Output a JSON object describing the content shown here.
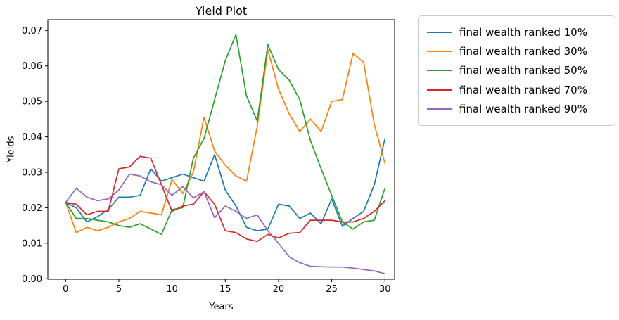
{
  "chart_data": {
    "type": "line",
    "title": "Yield Plot",
    "xlabel": "Years",
    "ylabel": "Yields",
    "x_ticks": [
      "0",
      "5",
      "10",
      "15",
      "20",
      "25",
      "30"
    ],
    "x_tick_values": [
      0,
      5,
      10,
      15,
      20,
      25,
      30
    ],
    "y_ticks": [
      "0.00",
      "0.01",
      "0.02",
      "0.03",
      "0.04",
      "0.05",
      "0.06",
      "0.07"
    ],
    "y_tick_values": [
      0.0,
      0.01,
      0.02,
      0.03,
      0.04,
      0.05,
      0.06,
      0.07
    ],
    "xlim": [
      -1.67,
      30.95
    ],
    "ylim": [
      -0.0002,
      0.0731
    ],
    "x": [
      0,
      1,
      2,
      3,
      4,
      5,
      6,
      7,
      8,
      9,
      10,
      11,
      12,
      13,
      14,
      15,
      16,
      17,
      18,
      19,
      20,
      21,
      22,
      23,
      24,
      25,
      26,
      27,
      28,
      29,
      30
    ],
    "grid": false,
    "legend_position": "outside-right",
    "axis_color": "#000000",
    "background_color": "#ffffff",
    "series": [
      {
        "name": "final wealth ranked 10%",
        "color": "#1f77b4",
        "values": [
          0.0215,
          0.02,
          0.016,
          0.0175,
          0.0195,
          0.023,
          0.023,
          0.0235,
          0.031,
          0.0275,
          0.0285,
          0.0295,
          0.0285,
          0.0275,
          0.035,
          0.025,
          0.0205,
          0.0145,
          0.0135,
          0.014,
          0.021,
          0.0205,
          0.017,
          0.0185,
          0.0155,
          0.0225,
          0.0148,
          0.017,
          0.019,
          0.0265,
          0.0395
        ]
      },
      {
        "name": "final wealth ranked 30%",
        "color": "#ff7f0e",
        "values": [
          0.0215,
          0.013,
          0.0145,
          0.0135,
          0.0145,
          0.016,
          0.017,
          0.019,
          0.0185,
          0.018,
          0.028,
          0.024,
          0.03,
          0.0455,
          0.036,
          0.032,
          0.029,
          0.0275,
          0.043,
          0.0645,
          0.0535,
          0.0465,
          0.0415,
          0.045,
          0.0415,
          0.05,
          0.0505,
          0.0635,
          0.061,
          0.0435,
          0.0325
        ]
      },
      {
        "name": "final wealth ranked 50%",
        "color": "#2ca02c",
        "values": [
          0.0215,
          0.017,
          0.017,
          0.0165,
          0.016,
          0.015,
          0.0145,
          0.0155,
          0.014,
          0.0125,
          0.0195,
          0.02,
          0.034,
          0.0395,
          0.0505,
          0.0615,
          0.0688,
          0.0515,
          0.0445,
          0.066,
          0.059,
          0.056,
          0.0505,
          0.039,
          0.031,
          0.0235,
          0.016,
          0.014,
          0.016,
          0.0165,
          0.0255
        ]
      },
      {
        "name": "final wealth ranked 70%",
        "color": "#d62728",
        "values": [
          0.0215,
          0.021,
          0.018,
          0.019,
          0.019,
          0.031,
          0.0315,
          0.0345,
          0.034,
          0.0265,
          0.019,
          0.0205,
          0.021,
          0.0245,
          0.021,
          0.0135,
          0.013,
          0.0112,
          0.0105,
          0.0125,
          0.0115,
          0.0128,
          0.013,
          0.0165,
          0.0165,
          0.0165,
          0.016,
          0.016,
          0.017,
          0.019,
          0.022
        ]
      },
      {
        "name": "final wealth ranked 90%",
        "color": "#9467bd",
        "values": [
          0.0215,
          0.0255,
          0.023,
          0.022,
          0.0225,
          0.025,
          0.0295,
          0.029,
          0.0273,
          0.0265,
          0.0235,
          0.026,
          0.0228,
          0.0245,
          0.0172,
          0.0205,
          0.019,
          0.017,
          0.018,
          0.0135,
          0.01,
          0.0062,
          0.0045,
          0.0035,
          0.0034,
          0.0033,
          0.0033,
          0.003,
          0.0026,
          0.0022,
          0.0014
        ]
      }
    ]
  }
}
